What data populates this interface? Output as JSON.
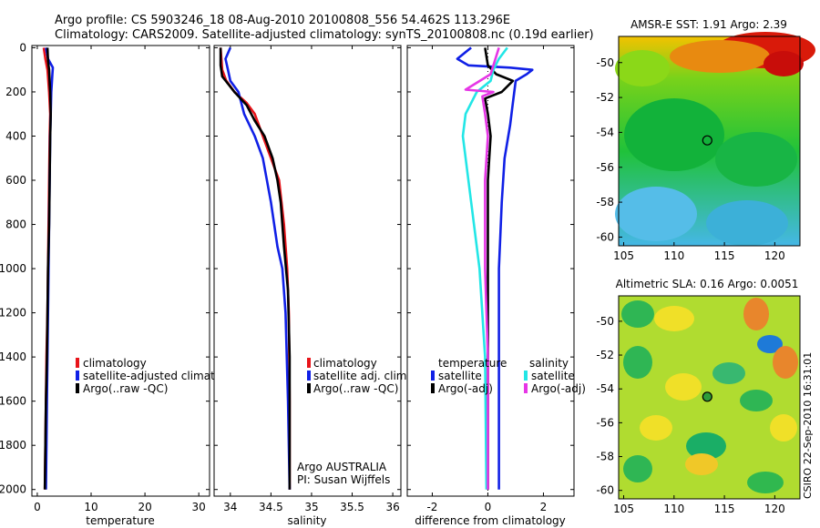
{
  "header": {
    "line1": "Argo profile: CS 5903246_18 08-Aug-2010 20100808_556 54.462S 113.296E",
    "line2": "Climatology: CARS2009. Satellite-adjusted climatology: synTS_20100808.nc (0.19d earlier)"
  },
  "footer_stamp": "CSIRO 22-Sep-2010 16:31:01",
  "colors": {
    "red": "#e8141a",
    "blue": "#1020e6",
    "black": "#000000",
    "cyan": "#22e6e6",
    "magenta": "#e636e6"
  },
  "depth_axis": {
    "ticks": [
      0,
      200,
      400,
      600,
      800,
      1000,
      1200,
      1400,
      1600,
      1800,
      2000
    ],
    "range": [
      2030,
      -10
    ]
  },
  "chart_data": [
    {
      "id": "temperature",
      "type": "line",
      "xlabel": "temperature",
      "xlim": [
        -1,
        32
      ],
      "xticks": [
        0,
        10,
        20,
        30
      ],
      "legend": [
        "climatology",
        "satellite-adjusted climatolog",
        "Argo(..raw -QC)"
      ],
      "series": [
        {
          "name": "climatology",
          "color": "red",
          "points": [
            [
              1.2,
              0
            ],
            [
              1.5,
              50
            ],
            [
              1.9,
              100
            ],
            [
              2.2,
              200
            ],
            [
              2.4,
              300
            ],
            [
              2.3,
              400
            ],
            [
              2.2,
              600
            ],
            [
              2.1,
              800
            ],
            [
              2.0,
              1000
            ],
            [
              1.9,
              1200
            ],
            [
              1.7,
              1400
            ],
            [
              1.6,
              1600
            ],
            [
              1.5,
              1800
            ],
            [
              1.4,
              2000
            ]
          ]
        },
        {
          "name": "satellite-adjusted climatolog",
          "color": "blue",
          "points": [
            [
              1.6,
              0
            ],
            [
              2.0,
              50
            ],
            [
              2.9,
              90
            ],
            [
              2.8,
              120
            ],
            [
              2.6,
              200
            ],
            [
              2.5,
              300
            ],
            [
              2.4,
              400
            ],
            [
              2.3,
              600
            ],
            [
              2.2,
              800
            ],
            [
              2.1,
              1000
            ],
            [
              2.0,
              1200
            ],
            [
              1.9,
              1400
            ],
            [
              1.8,
              1600
            ],
            [
              1.7,
              1800
            ],
            [
              1.6,
              2000
            ]
          ]
        },
        {
          "name": "Argo(..raw -QC)",
          "color": "black",
          "points": [
            [
              1.9,
              0
            ],
            [
              2.0,
              60
            ],
            [
              2.2,
              100
            ],
            [
              2.4,
              200
            ],
            [
              2.5,
              300
            ],
            [
              2.4,
              400
            ],
            [
              2.3,
              600
            ],
            [
              2.2,
              800
            ],
            [
              2.0,
              1000
            ],
            [
              1.9,
              1200
            ],
            [
              1.8,
              1400
            ],
            [
              1.6,
              1600
            ],
            [
              1.5,
              1800
            ],
            [
              1.4,
              2000
            ]
          ]
        }
      ]
    },
    {
      "id": "salinity",
      "type": "line",
      "xlabel": "salinity",
      "xlim": [
        33.8,
        36.1
      ],
      "xticks": [
        34,
        34.5,
        35,
        35.5,
        36
      ],
      "legend": [
        "climatology",
        "satellite adj. clim.",
        "Argo(..raw -QC)"
      ],
      "credit": [
        "Argo AUSTRALIA",
        "PI: Susan Wijffels"
      ],
      "series": [
        {
          "name": "climatology",
          "color": "red",
          "points": [
            [
              33.88,
              0
            ],
            [
              33.9,
              100
            ],
            [
              33.95,
              150
            ],
            [
              34.05,
              200
            ],
            [
              34.2,
              250
            ],
            [
              34.3,
              300
            ],
            [
              34.4,
              400
            ],
            [
              34.5,
              500
            ],
            [
              34.6,
              600
            ],
            [
              34.66,
              800
            ],
            [
              34.7,
              1000
            ],
            [
              34.72,
              1200
            ],
            [
              34.73,
              1600
            ],
            [
              34.73,
              2000
            ]
          ]
        },
        {
          "name": "satellite adj. clim.",
          "color": "blue",
          "points": [
            [
              34.0,
              0
            ],
            [
              33.94,
              50
            ],
            [
              33.97,
              100
            ],
            [
              34.0,
              150
            ],
            [
              34.1,
              200
            ],
            [
              34.17,
              300
            ],
            [
              34.3,
              400
            ],
            [
              34.4,
              500
            ],
            [
              34.5,
              700
            ],
            [
              34.58,
              900
            ],
            [
              34.64,
              1000
            ],
            [
              34.68,
              1200
            ],
            [
              34.71,
              1600
            ],
            [
              34.73,
              2000
            ]
          ]
        },
        {
          "name": "Argo(..raw -QC)",
          "color": "black",
          "points": [
            [
              33.88,
              0
            ],
            [
              33.88,
              80
            ],
            [
              33.9,
              130
            ],
            [
              34.05,
              200
            ],
            [
              34.2,
              260
            ],
            [
              34.3,
              330
            ],
            [
              34.42,
              400
            ],
            [
              34.52,
              500
            ],
            [
              34.58,
              600
            ],
            [
              34.62,
              700
            ],
            [
              34.66,
              900
            ],
            [
              34.71,
              1100
            ],
            [
              34.73,
              1400
            ],
            [
              34.73,
              2000
            ]
          ]
        }
      ]
    },
    {
      "id": "difference",
      "type": "line",
      "xlabel": "difference from climatology",
      "xlim": [
        -2.9,
        3.1
      ],
      "xticks": [
        -2,
        0,
        2
      ],
      "legend_headers": [
        "temperature",
        "salinity"
      ],
      "legend": [
        "satellite",
        "Argo(-adj)",
        "satellite",
        "Argo(-adj)"
      ],
      "series": [
        {
          "name": "temperature satellite",
          "color": "blue",
          "points": [
            [
              -0.6,
              0
            ],
            [
              -1.1,
              50
            ],
            [
              -0.7,
              80
            ],
            [
              0.8,
              90
            ],
            [
              1.6,
              100
            ],
            [
              1.4,
              120
            ],
            [
              1.0,
              150
            ],
            [
              0.9,
              250
            ],
            [
              0.8,
              350
            ],
            [
              0.6,
              500
            ],
            [
              0.5,
              700
            ],
            [
              0.4,
              1000
            ],
            [
              0.4,
              1400
            ],
            [
              0.4,
              2000
            ]
          ]
        },
        {
          "name": "temperature Argo(-adj)",
          "color": "black",
          "points": [
            [
              -0.1,
              0
            ],
            [
              0.0,
              80
            ],
            [
              0.3,
              120
            ],
            [
              0.9,
              150
            ],
            [
              0.5,
              200
            ],
            [
              -0.1,
              230
            ],
            [
              0.0,
              300
            ],
            [
              0.1,
              400
            ],
            [
              0.0,
              600
            ],
            [
              0.0,
              1000
            ],
            [
              0.0,
              1400
            ],
            [
              0.0,
              2000
            ]
          ]
        },
        {
          "name": "salinity satellite",
          "color": "cyan",
          "points": [
            [
              0.7,
              0
            ],
            [
              0.4,
              50
            ],
            [
              0.2,
              100
            ],
            [
              0.1,
              150
            ],
            [
              -0.4,
              200
            ],
            [
              -0.8,
              300
            ],
            [
              -0.9,
              400
            ],
            [
              -0.7,
              600
            ],
            [
              -0.5,
              800
            ],
            [
              -0.3,
              1000
            ],
            [
              -0.1,
              1400
            ],
            [
              -0.05,
              2000
            ]
          ]
        },
        {
          "name": "salinity Argo(-adj)",
          "color": "magenta",
          "points": [
            [
              0.4,
              0
            ],
            [
              0.1,
              120
            ],
            [
              -0.8,
              190
            ],
            [
              0.2,
              200
            ],
            [
              -0.2,
              220
            ],
            [
              -0.1,
              300
            ],
            [
              0.0,
              400
            ],
            [
              -0.1,
              600
            ],
            [
              -0.1,
              1000
            ],
            [
              0.0,
              1400
            ],
            [
              0.0,
              2000
            ]
          ]
        }
      ]
    },
    {
      "id": "sst_map",
      "type": "heatmap",
      "title": "AMSR-E SST: 1.91 Argo: 2.39",
      "xlim": [
        104.5,
        122.5
      ],
      "ylim": [
        -60.5,
        -48.5
      ],
      "xticks": [
        105,
        110,
        115,
        120
      ],
      "yticks": [
        -50,
        -52,
        -54,
        -56,
        -58,
        -60
      ],
      "marker": {
        "lon": 113.3,
        "lat": -54.46
      }
    },
    {
      "id": "sla_map",
      "type": "heatmap",
      "title": "Altimetric SLA: 0.16 Argo: 0.0051",
      "xlim": [
        104.5,
        122.5
      ],
      "ylim": [
        -60.5,
        -48.5
      ],
      "xticks": [
        105,
        110,
        115,
        120
      ],
      "yticks": [
        -50,
        -52,
        -54,
        -56,
        -58,
        -60
      ],
      "marker": {
        "lon": 113.3,
        "lat": -54.46
      }
    }
  ]
}
